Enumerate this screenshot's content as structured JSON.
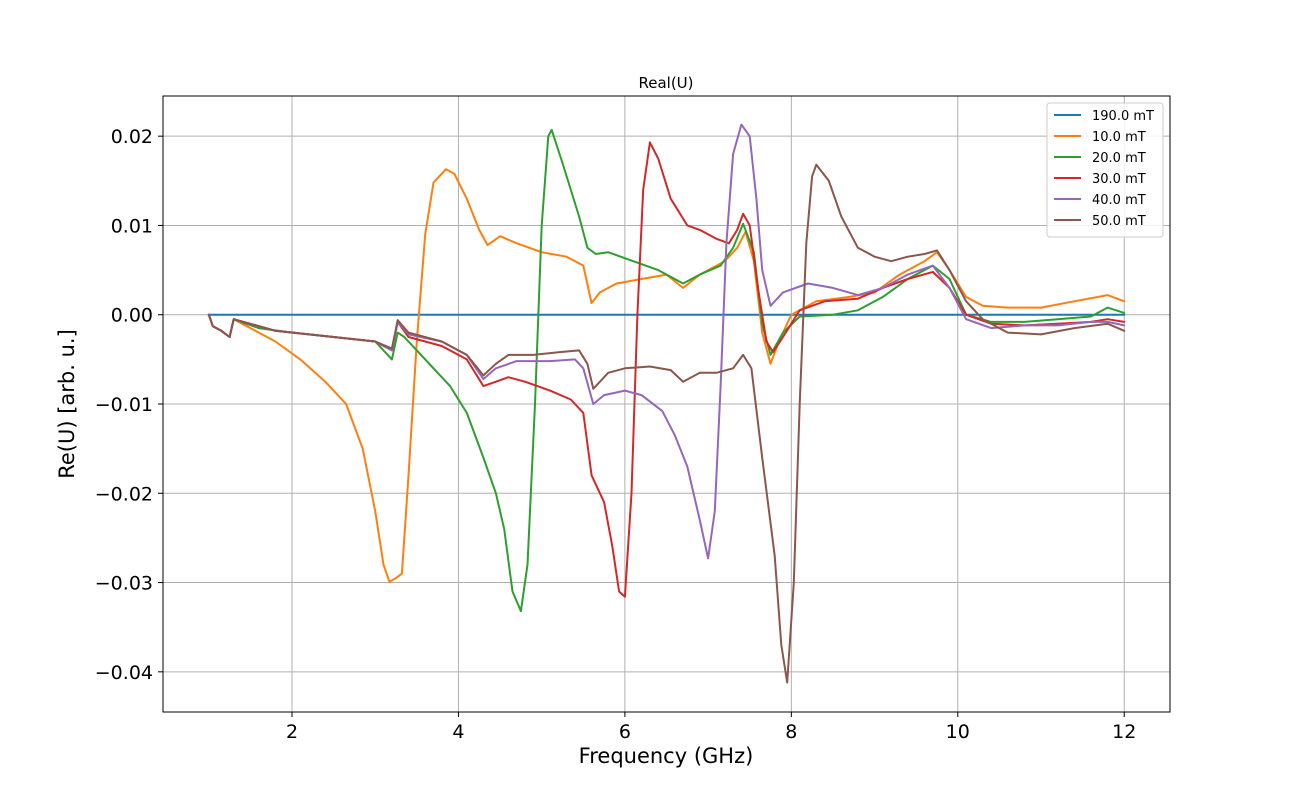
{
  "chart_data": {
    "type": "line",
    "title": "Real(U)",
    "xlabel": "Frequency (GHz)",
    "ylabel": "Re(U) [arb. u.]",
    "xlim": [
      0.45,
      12.55
    ],
    "ylim": [
      -0.0445,
      0.0245
    ],
    "xticks": [
      2,
      4,
      6,
      8,
      10,
      12
    ],
    "xtick_labels": [
      "2",
      "4",
      "6",
      "8",
      "10",
      "12"
    ],
    "yticks": [
      0.02,
      0.01,
      0.0,
      -0.01,
      -0.02,
      -0.03,
      -0.04
    ],
    "ytick_labels": [
      "0.02",
      "0.01",
      "0.00",
      "−0.01",
      "−0.02",
      "−0.03",
      "−0.04"
    ],
    "grid": true,
    "legend_position": "top-right",
    "series": [
      {
        "name": "190.0 mT",
        "color": "#1f77b4",
        "points": [
          [
            1.0,
            0.0
          ],
          [
            12.0,
            0.0
          ]
        ]
      },
      {
        "name": "10.0 mT",
        "color": "#ff7f0e",
        "points": [
          [
            1.0,
            0.0
          ],
          [
            1.05,
            -0.0013
          ],
          [
            1.15,
            -0.0018
          ],
          [
            1.25,
            -0.0025
          ],
          [
            1.3,
            -0.0005
          ],
          [
            1.5,
            -0.0015
          ],
          [
            1.8,
            -0.003
          ],
          [
            2.1,
            -0.005
          ],
          [
            2.4,
            -0.0075
          ],
          [
            2.65,
            -0.01
          ],
          [
            2.85,
            -0.015
          ],
          [
            3.0,
            -0.022
          ],
          [
            3.1,
            -0.028
          ],
          [
            3.17,
            -0.0299
          ],
          [
            3.25,
            -0.0295
          ],
          [
            3.32,
            -0.029
          ],
          [
            3.4,
            -0.018
          ],
          [
            3.5,
            -0.003
          ],
          [
            3.6,
            0.009
          ],
          [
            3.7,
            0.0148
          ],
          [
            3.85,
            0.0163
          ],
          [
            3.95,
            0.0158
          ],
          [
            4.1,
            0.013
          ],
          [
            4.25,
            0.0095
          ],
          [
            4.35,
            0.0078
          ],
          [
            4.5,
            0.0088
          ],
          [
            4.7,
            0.008
          ],
          [
            5.0,
            0.007
          ],
          [
            5.3,
            0.0065
          ],
          [
            5.5,
            0.0055
          ],
          [
            5.6,
            0.0013
          ],
          [
            5.7,
            0.0025
          ],
          [
            5.9,
            0.0035
          ],
          [
            6.2,
            0.004
          ],
          [
            6.5,
            0.0045
          ],
          [
            6.7,
            0.003
          ],
          [
            6.9,
            0.0045
          ],
          [
            7.2,
            0.006
          ],
          [
            7.35,
            0.0075
          ],
          [
            7.45,
            0.0093
          ],
          [
            7.55,
            0.006
          ],
          [
            7.65,
            -0.002
          ],
          [
            7.75,
            -0.0055
          ],
          [
            7.85,
            -0.003
          ],
          [
            8.0,
            0.0
          ],
          [
            8.3,
            0.0015
          ],
          [
            8.7,
            0.002
          ],
          [
            9.0,
            0.0025
          ],
          [
            9.3,
            0.0045
          ],
          [
            9.6,
            0.006
          ],
          [
            9.75,
            0.007
          ],
          [
            9.9,
            0.005
          ],
          [
            10.1,
            0.002
          ],
          [
            10.3,
            0.001
          ],
          [
            10.6,
            0.0008
          ],
          [
            11.0,
            0.0008
          ],
          [
            11.4,
            0.0015
          ],
          [
            11.8,
            0.0022
          ],
          [
            12.0,
            0.0015
          ]
        ]
      },
      {
        "name": "20.0 mT",
        "color": "#2ca02c",
        "points": [
          [
            1.0,
            0.0
          ],
          [
            1.05,
            -0.0013
          ],
          [
            1.15,
            -0.0018
          ],
          [
            1.25,
            -0.0025
          ],
          [
            1.3,
            -0.0005
          ],
          [
            1.6,
            -0.0015
          ],
          [
            2.0,
            -0.002
          ],
          [
            2.5,
            -0.0025
          ],
          [
            3.0,
            -0.003
          ],
          [
            3.2,
            -0.005
          ],
          [
            3.27,
            -0.002
          ],
          [
            3.35,
            -0.0025
          ],
          [
            3.6,
            -0.005
          ],
          [
            3.9,
            -0.008
          ],
          [
            4.1,
            -0.011
          ],
          [
            4.3,
            -0.016
          ],
          [
            4.45,
            -0.02
          ],
          [
            4.55,
            -0.024
          ],
          [
            4.65,
            -0.031
          ],
          [
            4.75,
            -0.0332
          ],
          [
            4.83,
            -0.028
          ],
          [
            4.92,
            -0.01
          ],
          [
            5.0,
            0.01
          ],
          [
            5.08,
            0.02
          ],
          [
            5.12,
            0.0207
          ],
          [
            5.25,
            0.017
          ],
          [
            5.45,
            0.011
          ],
          [
            5.55,
            0.0075
          ],
          [
            5.65,
            0.0068
          ],
          [
            5.8,
            0.007
          ],
          [
            6.1,
            0.006
          ],
          [
            6.4,
            0.005
          ],
          [
            6.7,
            0.0035
          ],
          [
            6.9,
            0.0045
          ],
          [
            7.15,
            0.0055
          ],
          [
            7.3,
            0.0075
          ],
          [
            7.42,
            0.0102
          ],
          [
            7.55,
            0.007
          ],
          [
            7.65,
            -0.001
          ],
          [
            7.75,
            -0.0045
          ],
          [
            7.9,
            -0.002
          ],
          [
            8.1,
            -0.0002
          ],
          [
            8.5,
            0.0
          ],
          [
            8.8,
            0.0005
          ],
          [
            9.1,
            0.002
          ],
          [
            9.4,
            0.004
          ],
          [
            9.7,
            0.0055
          ],
          [
            9.9,
            0.004
          ],
          [
            10.1,
            0.0
          ],
          [
            10.4,
            -0.0008
          ],
          [
            10.8,
            -0.0008
          ],
          [
            11.2,
            -0.0005
          ],
          [
            11.6,
            -0.0002
          ],
          [
            11.8,
            0.0008
          ],
          [
            12.0,
            0.0002
          ]
        ]
      },
      {
        "name": "30.0 mT",
        "color": "#d62728",
        "points": [
          [
            1.0,
            0.0
          ],
          [
            1.05,
            -0.0013
          ],
          [
            1.15,
            -0.0018
          ],
          [
            1.25,
            -0.0025
          ],
          [
            1.3,
            -0.0005
          ],
          [
            1.8,
            -0.0018
          ],
          [
            2.5,
            -0.0025
          ],
          [
            3.0,
            -0.003
          ],
          [
            3.2,
            -0.004
          ],
          [
            3.27,
            -0.0008
          ],
          [
            3.4,
            -0.0025
          ],
          [
            3.8,
            -0.0035
          ],
          [
            4.1,
            -0.005
          ],
          [
            4.3,
            -0.008
          ],
          [
            4.45,
            -0.0075
          ],
          [
            4.6,
            -0.007
          ],
          [
            4.8,
            -0.0075
          ],
          [
            5.1,
            -0.0085
          ],
          [
            5.35,
            -0.0095
          ],
          [
            5.5,
            -0.011
          ],
          [
            5.6,
            -0.018
          ],
          [
            5.75,
            -0.021
          ],
          [
            5.85,
            -0.026
          ],
          [
            5.93,
            -0.031
          ],
          [
            6.0,
            -0.0316
          ],
          [
            6.08,
            -0.02
          ],
          [
            6.15,
            0.0
          ],
          [
            6.22,
            0.014
          ],
          [
            6.3,
            0.0193
          ],
          [
            6.4,
            0.0175
          ],
          [
            6.55,
            0.013
          ],
          [
            6.75,
            0.01
          ],
          [
            6.9,
            0.0095
          ],
          [
            7.1,
            0.0085
          ],
          [
            7.25,
            0.008
          ],
          [
            7.35,
            0.0095
          ],
          [
            7.42,
            0.0113
          ],
          [
            7.5,
            0.01
          ],
          [
            7.6,
            0.003
          ],
          [
            7.7,
            -0.003
          ],
          [
            7.78,
            -0.0042
          ],
          [
            7.9,
            -0.0025
          ],
          [
            8.1,
            0.0005
          ],
          [
            8.4,
            0.0015
          ],
          [
            8.8,
            0.0018
          ],
          [
            9.1,
            0.003
          ],
          [
            9.4,
            0.004
          ],
          [
            9.7,
            0.0048
          ],
          [
            9.9,
            0.003
          ],
          [
            10.1,
            0.0
          ],
          [
            10.4,
            -0.001
          ],
          [
            10.8,
            -0.0012
          ],
          [
            11.2,
            -0.001
          ],
          [
            11.6,
            -0.0008
          ],
          [
            11.8,
            -0.0005
          ],
          [
            12.0,
            -0.0008
          ]
        ]
      },
      {
        "name": "40.0 mT",
        "color": "#9467bd",
        "points": [
          [
            1.0,
            0.0
          ],
          [
            1.05,
            -0.0013
          ],
          [
            1.15,
            -0.0018
          ],
          [
            1.25,
            -0.0025
          ],
          [
            1.3,
            -0.0005
          ],
          [
            1.8,
            -0.0018
          ],
          [
            2.5,
            -0.0025
          ],
          [
            3.0,
            -0.003
          ],
          [
            3.2,
            -0.004
          ],
          [
            3.27,
            -0.0008
          ],
          [
            3.4,
            -0.0022
          ],
          [
            3.8,
            -0.003
          ],
          [
            4.1,
            -0.0045
          ],
          [
            4.3,
            -0.0072
          ],
          [
            4.45,
            -0.006
          ],
          [
            4.7,
            -0.0052
          ],
          [
            5.1,
            -0.0052
          ],
          [
            5.4,
            -0.005
          ],
          [
            5.5,
            -0.006
          ],
          [
            5.62,
            -0.01
          ],
          [
            5.75,
            -0.009
          ],
          [
            6.0,
            -0.0085
          ],
          [
            6.2,
            -0.009
          ],
          [
            6.45,
            -0.0108
          ],
          [
            6.6,
            -0.0135
          ],
          [
            6.75,
            -0.017
          ],
          [
            6.9,
            -0.023
          ],
          [
            7.0,
            -0.0273
          ],
          [
            7.08,
            -0.022
          ],
          [
            7.15,
            -0.008
          ],
          [
            7.22,
            0.008
          ],
          [
            7.3,
            0.018
          ],
          [
            7.4,
            0.0213
          ],
          [
            7.5,
            0.02
          ],
          [
            7.58,
            0.013
          ],
          [
            7.65,
            0.005
          ],
          [
            7.75,
            0.001
          ],
          [
            7.9,
            0.0025
          ],
          [
            8.2,
            0.0035
          ],
          [
            8.5,
            0.003
          ],
          [
            8.8,
            0.0022
          ],
          [
            9.1,
            0.003
          ],
          [
            9.4,
            0.0045
          ],
          [
            9.7,
            0.0055
          ],
          [
            9.9,
            0.003
          ],
          [
            10.1,
            -0.0005
          ],
          [
            10.4,
            -0.0015
          ],
          [
            10.8,
            -0.0012
          ],
          [
            11.2,
            -0.0012
          ],
          [
            11.6,
            -0.0008
          ],
          [
            11.8,
            -0.0008
          ],
          [
            12.0,
            -0.0012
          ]
        ]
      },
      {
        "name": "50.0 mT",
        "color": "#8c564b",
        "points": [
          [
            1.0,
            0.0
          ],
          [
            1.05,
            -0.0013
          ],
          [
            1.15,
            -0.0018
          ],
          [
            1.25,
            -0.0025
          ],
          [
            1.3,
            -0.0005
          ],
          [
            1.8,
            -0.0018
          ],
          [
            2.5,
            -0.0025
          ],
          [
            3.0,
            -0.003
          ],
          [
            3.2,
            -0.0038
          ],
          [
            3.27,
            -0.0006
          ],
          [
            3.4,
            -0.002
          ],
          [
            3.8,
            -0.003
          ],
          [
            4.1,
            -0.0045
          ],
          [
            4.3,
            -0.0068
          ],
          [
            4.45,
            -0.0055
          ],
          [
            4.6,
            -0.0045
          ],
          [
            4.9,
            -0.0045
          ],
          [
            5.2,
            -0.0042
          ],
          [
            5.45,
            -0.004
          ],
          [
            5.55,
            -0.0055
          ],
          [
            5.62,
            -0.0083
          ],
          [
            5.8,
            -0.0065
          ],
          [
            6.0,
            -0.006
          ],
          [
            6.3,
            -0.0058
          ],
          [
            6.55,
            -0.0062
          ],
          [
            6.7,
            -0.0075
          ],
          [
            6.9,
            -0.0065
          ],
          [
            7.1,
            -0.0065
          ],
          [
            7.3,
            -0.006
          ],
          [
            7.42,
            -0.0045
          ],
          [
            7.52,
            -0.006
          ],
          [
            7.65,
            -0.016
          ],
          [
            7.8,
            -0.027
          ],
          [
            7.88,
            -0.037
          ],
          [
            7.95,
            -0.0412
          ],
          [
            8.03,
            -0.03
          ],
          [
            8.1,
            -0.01
          ],
          [
            8.18,
            0.008
          ],
          [
            8.25,
            0.0155
          ],
          [
            8.3,
            0.0168
          ],
          [
            8.45,
            0.015
          ],
          [
            8.6,
            0.011
          ],
          [
            8.8,
            0.0075
          ],
          [
            9.0,
            0.0065
          ],
          [
            9.2,
            0.006
          ],
          [
            9.4,
            0.0065
          ],
          [
            9.6,
            0.0068
          ],
          [
            9.75,
            0.0072
          ],
          [
            9.9,
            0.005
          ],
          [
            10.1,
            0.0015
          ],
          [
            10.3,
            -0.0005
          ],
          [
            10.6,
            -0.002
          ],
          [
            11.0,
            -0.0022
          ],
          [
            11.4,
            -0.0015
          ],
          [
            11.8,
            -0.001
          ],
          [
            12.0,
            -0.0018
          ]
        ]
      }
    ]
  }
}
